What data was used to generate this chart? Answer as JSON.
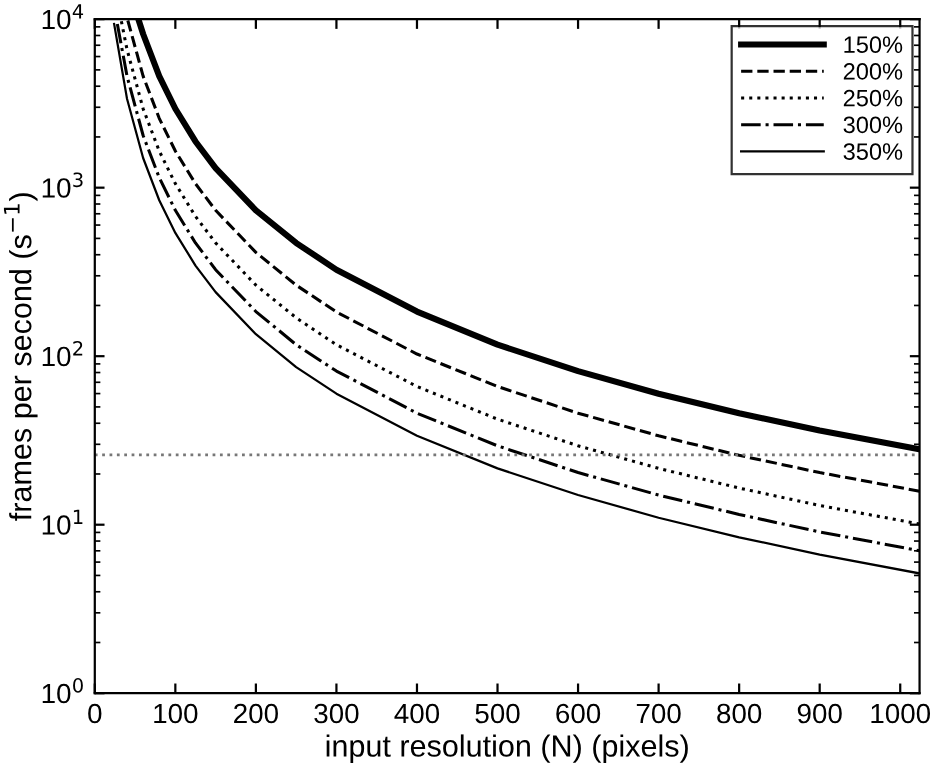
{
  "chart_data": {
    "type": "line",
    "xlabel": "input resolution (N) (pixels)",
    "ylabel": "frames per second (s$^{−1}$)",
    "log": "y",
    "xlim": [
      0,
      1024
    ],
    "ylim": [
      1,
      10000
    ],
    "xticks": [
      0,
      100,
      200,
      300,
      400,
      500,
      600,
      700,
      800,
      900,
      1000
    ],
    "yticks": [
      {
        "value": 1,
        "label": "10$^{0}$"
      },
      {
        "value": 10,
        "label": "10$^{1}$"
      },
      {
        "value": 100,
        "label": "10$^{2}$"
      },
      {
        "value": 1000,
        "label": "10$^{3}$"
      },
      {
        "value": 10000,
        "label": "10$^{4}$"
      }
    ],
    "grid": false,
    "legend": "top right",
    "marker": "none",
    "ref_lines": [
      {
        "axis": "y",
        "value": 26,
        "label": null,
        "color": "#777777",
        "line_style": "dotted"
      }
    ],
    "series": [
      {
        "name": "150%",
        "color": "#000000",
        "line_style": "solid",
        "x": [
          55,
          60,
          80,
          100,
          125,
          150,
          200,
          250,
          300,
          400,
          500,
          600,
          700,
          800,
          900,
          1024
        ],
        "values": [
          9700,
          8160,
          4590,
          2940,
          1880,
          1305,
          734,
          470,
          326,
          184,
          117,
          81.6,
          59.9,
          45.9,
          36.2,
          28
        ]
      },
      {
        "name": "200%",
        "color": "#000000",
        "line_style": "dashed",
        "x": [
          41,
          60,
          80,
          100,
          125,
          150,
          200,
          250,
          300,
          400,
          500,
          600,
          700,
          800,
          900,
          1024
        ],
        "values": [
          9820,
          4590,
          2580,
          1650,
          1056,
          734,
          413,
          264,
          183,
          103,
          66.1,
          45.9,
          33.7,
          25.8,
          20.4,
          15.8
        ]
      },
      {
        "name": "250%",
        "color": "#000000",
        "line_style": "dotted",
        "x": [
          33,
          40,
          60,
          80,
          100,
          125,
          150,
          200,
          250,
          300,
          400,
          500,
          600,
          700,
          800,
          900,
          1024
        ],
        "values": [
          9710,
          6610,
          2940,
          1650,
          1057,
          676,
          470,
          264,
          169,
          117,
          66.1,
          42.3,
          29.4,
          21.6,
          16.5,
          13.0,
          10.1
        ]
      },
      {
        "name": "300%",
        "color": "#000000",
        "line_style": "dashdot",
        "x": [
          28,
          40,
          60,
          80,
          100,
          125,
          150,
          200,
          250,
          300,
          400,
          500,
          600,
          700,
          800,
          900,
          1024
        ],
        "values": [
          9360,
          4590,
          2040,
          1147,
          734,
          470,
          326,
          184,
          117,
          81.6,
          45.9,
          29.4,
          20.4,
          15.0,
          11.5,
          9.06,
          7.0
        ]
      },
      {
        "name": "350%",
        "color": "#000000",
        "line_style": "solid",
        "x": [
          24,
          40,
          60,
          80,
          100,
          125,
          150,
          200,
          250,
          300,
          400,
          500,
          600,
          700,
          800,
          900,
          1024
        ],
        "values": [
          9360,
          3370,
          1500,
          842,
          539,
          345,
          240,
          135,
          86.2,
          59.9,
          33.7,
          21.6,
          15.0,
          11.0,
          8.42,
          6.65,
          5.14
        ]
      }
    ]
  }
}
